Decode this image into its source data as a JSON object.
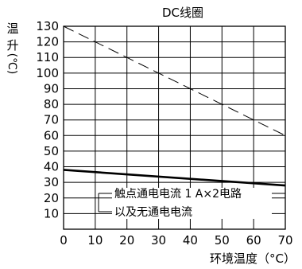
{
  "chart_data": {
    "type": "line",
    "title": "DC线圈",
    "ylabel_chars": [
      "温",
      "升",
      "(℃)"
    ],
    "xlabel": "环境温度（°C）",
    "xlim": [
      0,
      70
    ],
    "ylim": [
      0,
      130
    ],
    "x_ticks": [
      0,
      10,
      20,
      30,
      40,
      50,
      60,
      70
    ],
    "y_ticks": [
      10,
      20,
      30,
      40,
      50,
      60,
      70,
      80,
      90,
      100,
      110,
      120,
      130
    ],
    "grid": true,
    "series": [
      {
        "style": "dashed",
        "x": [
          0,
          70
        ],
        "y": [
          130,
          60
        ]
      },
      {
        "style": "solid-bold",
        "x": [
          0,
          70
        ],
        "y": [
          38,
          28
        ]
      }
    ],
    "annotation": {
      "lines": [
        "触点通电电流 1 A×2电路",
        "以及无通电电流"
      ]
    }
  }
}
